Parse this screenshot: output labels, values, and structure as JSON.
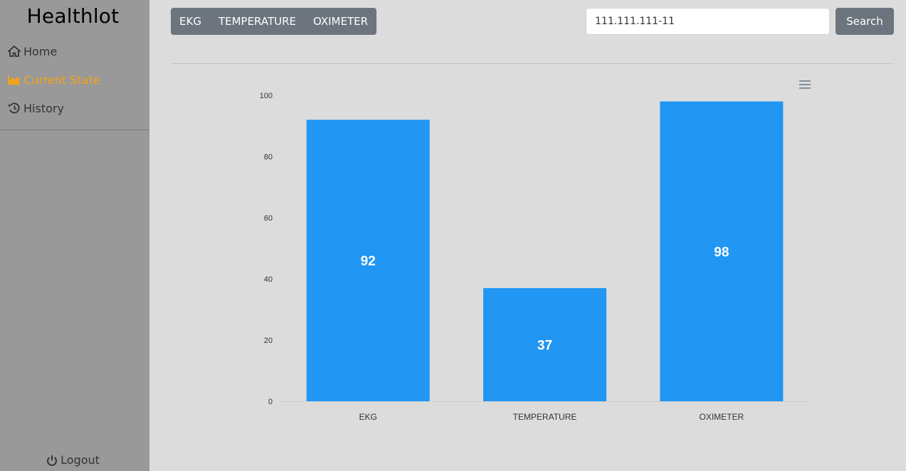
{
  "sidebar": {
    "brand": "Healthlot",
    "items": [
      {
        "label": "Home",
        "icon": "home-icon"
      },
      {
        "label": "Current State",
        "icon": "area-chart-icon"
      },
      {
        "label": "History",
        "icon": "history-icon"
      }
    ],
    "logout_label": "Logout",
    "active_color": "#f5a216"
  },
  "header": {
    "tabs": [
      "EKG",
      "TEMPERATURE",
      "OXIMETER"
    ],
    "search": {
      "value": "111.111.111-11",
      "button_label": "Search"
    }
  },
  "chart_data": {
    "type": "bar",
    "categories": [
      "EKG",
      "TEMPERATURE",
      "OXIMETER"
    ],
    "values": [
      92,
      37,
      98
    ],
    "ylim": [
      0,
      100
    ],
    "yticks": [
      0,
      20,
      40,
      60,
      80,
      100
    ],
    "bar_color": "#2196f3",
    "data_labels": true,
    "grid": false
  }
}
